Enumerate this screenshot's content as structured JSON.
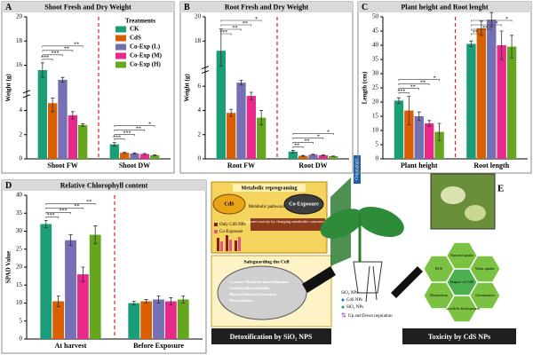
{
  "chart_data": [
    {
      "type": "bar",
      "panel": "A",
      "title": "Shoot Fresh and Dry Weight",
      "ylabel": "Weight (g)",
      "categories": [
        "Shoot FW",
        "Shoot DW"
      ],
      "series": [
        {
          "name": "CK",
          "color": "#1b9e77",
          "values": [
            15.6,
            1.2
          ],
          "errors": [
            0.6,
            0.15
          ]
        },
        {
          "name": "CdS",
          "color": "#d95f02",
          "values": [
            4.6,
            0.5
          ],
          "errors": [
            0.7,
            0.05
          ]
        },
        {
          "name": "Co-Exp (L)",
          "color": "#7570b3",
          "values": [
            14.8,
            0.45
          ],
          "errors": [
            0.2,
            0.05
          ]
        },
        {
          "name": "Co-Exp (M)",
          "color": "#e7298a",
          "values": [
            3.6,
            0.4
          ],
          "errors": [
            0.3,
            0.05
          ]
        },
        {
          "name": "Co-Exp (H)",
          "color": "#66a61e",
          "values": [
            2.8,
            0.3
          ],
          "errors": [
            0.1,
            0.03
          ]
        }
      ],
      "ylim": [
        0,
        20
      ],
      "yticks": [
        0,
        2,
        4,
        16,
        18,
        20
      ],
      "ybreak": [
        5,
        14
      ],
      "legend": "upper right",
      "legend_title": "Treatments",
      "significance": [
        [
          "***",
          "***",
          "**",
          "**"
        ],
        [
          "***",
          "***",
          "**",
          "*"
        ]
      ]
    },
    {
      "type": "bar",
      "panel": "B",
      "title": "Root Fresh and Dry Weight",
      "ylabel": "Weight (g)",
      "categories": [
        "Root FW",
        "Root DW"
      ],
      "series": [
        {
          "name": "CK",
          "color": "#1b9e77",
          "values": [
            17.2,
            0.6
          ],
          "errors": [
            1.8,
            0.1
          ]
        },
        {
          "name": "CdS",
          "color": "#d95f02",
          "values": [
            3.8,
            0.25
          ],
          "errors": [
            0.3,
            0.03
          ]
        },
        {
          "name": "Co-Exp (L)",
          "color": "#7570b3",
          "values": [
            6.3,
            0.35
          ],
          "errors": [
            0.2,
            0.03
          ]
        },
        {
          "name": "Co-Exp (M)",
          "color": "#e7298a",
          "values": [
            5.2,
            0.3
          ],
          "errors": [
            0.3,
            0.03
          ]
        },
        {
          "name": "Co-Exp (H)",
          "color": "#66a61e",
          "values": [
            3.4,
            0.22
          ],
          "errors": [
            0.6,
            0.02
          ]
        }
      ],
      "ylim": [
        0,
        20
      ],
      "yticks": [
        0,
        2,
        4,
        6,
        18,
        20
      ],
      "ybreak": [
        7,
        16
      ],
      "significance": [
        [
          "***",
          "**",
          "**",
          "*"
        ],
        [
          "**",
          "**",
          "*",
          "*"
        ]
      ]
    },
    {
      "type": "bar",
      "panel": "C",
      "title": "Plant height and Root lenght",
      "ylabel": "Length (cm)",
      "categories": [
        "Plant height",
        "Root length"
      ],
      "series": [
        {
          "name": "CK",
          "color": "#1b9e77",
          "values": [
            20.5,
            40.5
          ],
          "errors": [
            1,
            1
          ]
        },
        {
          "name": "CdS",
          "color": "#d95f02",
          "values": [
            17,
            46
          ],
          "errors": [
            5,
            2.5
          ]
        },
        {
          "name": "Co-Exp (L)",
          "color": "#7570b3",
          "values": [
            15,
            49
          ],
          "errors": [
            1.5,
            2.5
          ]
        },
        {
          "name": "Co-Exp (M)",
          "color": "#e7298a",
          "values": [
            12.5,
            40
          ],
          "errors": [
            1,
            5
          ]
        },
        {
          "name": "Co-Exp (H)",
          "color": "#66a61e",
          "values": [
            9.5,
            39.5
          ],
          "errors": [
            3,
            4
          ]
        }
      ],
      "ylim": [
        0,
        50
      ],
      "yticks": [
        0,
        5,
        10,
        15,
        20,
        25,
        30,
        35,
        40,
        45,
        50
      ],
      "significance": [
        [
          "***",
          "**",
          "**",
          "*"
        ],
        [
          "**",
          "**",
          "*",
          "*"
        ]
      ]
    },
    {
      "type": "bar",
      "panel": "D",
      "title": "Relative Chlorophyll content",
      "ylabel": "SPAD Value",
      "categories": [
        "At harvest",
        "Before Exposure"
      ],
      "series": [
        {
          "name": "CK",
          "color": "#1b9e77",
          "values": [
            32,
            10
          ],
          "errors": [
            1,
            0.5
          ]
        },
        {
          "name": "CdS",
          "color": "#d95f02",
          "values": [
            10.5,
            10.5
          ],
          "errors": [
            1.5,
            0.5
          ]
        },
        {
          "name": "Co-Exp (L)",
          "color": "#7570b3",
          "values": [
            27.5,
            11
          ],
          "errors": [
            1.5,
            1
          ]
        },
        {
          "name": "Co-Exp (M)",
          "color": "#e7298a",
          "values": [
            18,
            10.5
          ],
          "errors": [
            2,
            1
          ]
        },
        {
          "name": "Co-Exp (H)",
          "color": "#66a61e",
          "values": [
            29,
            11
          ],
          "errors": [
            2.5,
            1
          ]
        }
      ],
      "ylim": [
        0,
        40
      ],
      "yticks": [
        0,
        5,
        10,
        15,
        20,
        25,
        30,
        35,
        40
      ],
      "significance": [
        [
          "***",
          "***",
          "**",
          "**"
        ],
        []
      ]
    }
  ],
  "diagram": {
    "panel": "E",
    "metabolic": {
      "title": "Metabolic reprograming",
      "cds": "CdS",
      "coexp": "Co-Exposure",
      "pathways": "Metabolic pathways",
      "legend": [
        "Only CdS NPs",
        "Co-Exposure"
      ],
      "note": "Counter toxicity by changing metabolite concentration"
    },
    "safeguard": {
      "title": "Safeguarding the Cell",
      "items": [
        "Cysteine-Mediated Immobilization",
        "Limiting Bioavailability",
        "Physical Barrier Formation",
        "Phytochelatin"
      ]
    },
    "chlorophyll": "Chlorophyll",
    "key": [
      "SiO₂ NPs",
      "CdS NPs",
      "SiO₂ NPs",
      "Up and Down regulation"
    ],
    "detox_label": "Detoxification by SiO₂ NPS",
    "toxicity_label": "Toxicity by CdS NPs",
    "hexagons": {
      "center": "Impact of CdS",
      "items": [
        "Nutrient uptake",
        "Water uptake",
        "Germination",
        "Growth & development",
        "Metabolism",
        "ROS"
      ]
    }
  }
}
